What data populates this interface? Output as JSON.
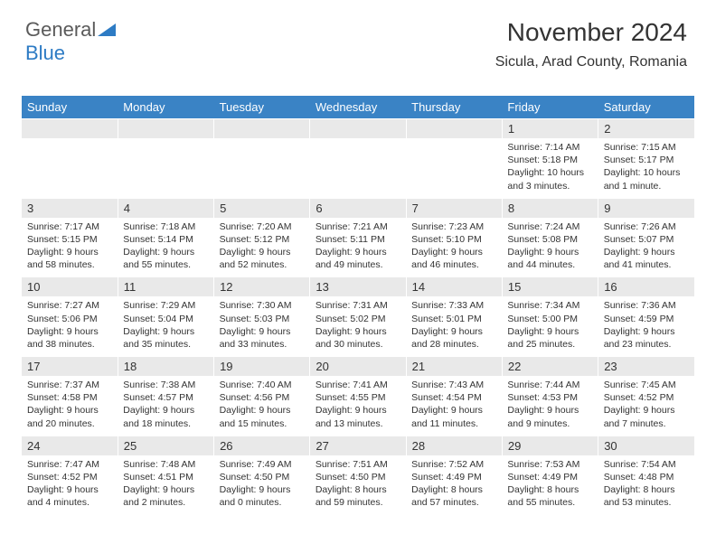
{
  "logo": {
    "text1": "General",
    "text2": "Blue"
  },
  "title": "November 2024",
  "location": "Sicula, Arad County, Romania",
  "colors": {
    "header_bg": "#3a83c5",
    "header_text": "#ffffff",
    "daynum_bg": "#e9e9e9",
    "text": "#333333",
    "logo_gray": "#5a5a5a",
    "logo_blue": "#2d7bc4",
    "page_bg": "#ffffff"
  },
  "weekdays": [
    "Sunday",
    "Monday",
    "Tuesday",
    "Wednesday",
    "Thursday",
    "Friday",
    "Saturday"
  ],
  "weeks": [
    [
      null,
      null,
      null,
      null,
      null,
      {
        "n": "1",
        "sr": "Sunrise: 7:14 AM",
        "ss": "Sunset: 5:18 PM",
        "dl": "Daylight: 10 hours and 3 minutes."
      },
      {
        "n": "2",
        "sr": "Sunrise: 7:15 AM",
        "ss": "Sunset: 5:17 PM",
        "dl": "Daylight: 10 hours and 1 minute."
      }
    ],
    [
      {
        "n": "3",
        "sr": "Sunrise: 7:17 AM",
        "ss": "Sunset: 5:15 PM",
        "dl": "Daylight: 9 hours and 58 minutes."
      },
      {
        "n": "4",
        "sr": "Sunrise: 7:18 AM",
        "ss": "Sunset: 5:14 PM",
        "dl": "Daylight: 9 hours and 55 minutes."
      },
      {
        "n": "5",
        "sr": "Sunrise: 7:20 AM",
        "ss": "Sunset: 5:12 PM",
        "dl": "Daylight: 9 hours and 52 minutes."
      },
      {
        "n": "6",
        "sr": "Sunrise: 7:21 AM",
        "ss": "Sunset: 5:11 PM",
        "dl": "Daylight: 9 hours and 49 minutes."
      },
      {
        "n": "7",
        "sr": "Sunrise: 7:23 AM",
        "ss": "Sunset: 5:10 PM",
        "dl": "Daylight: 9 hours and 46 minutes."
      },
      {
        "n": "8",
        "sr": "Sunrise: 7:24 AM",
        "ss": "Sunset: 5:08 PM",
        "dl": "Daylight: 9 hours and 44 minutes."
      },
      {
        "n": "9",
        "sr": "Sunrise: 7:26 AM",
        "ss": "Sunset: 5:07 PM",
        "dl": "Daylight: 9 hours and 41 minutes."
      }
    ],
    [
      {
        "n": "10",
        "sr": "Sunrise: 7:27 AM",
        "ss": "Sunset: 5:06 PM",
        "dl": "Daylight: 9 hours and 38 minutes."
      },
      {
        "n": "11",
        "sr": "Sunrise: 7:29 AM",
        "ss": "Sunset: 5:04 PM",
        "dl": "Daylight: 9 hours and 35 minutes."
      },
      {
        "n": "12",
        "sr": "Sunrise: 7:30 AM",
        "ss": "Sunset: 5:03 PM",
        "dl": "Daylight: 9 hours and 33 minutes."
      },
      {
        "n": "13",
        "sr": "Sunrise: 7:31 AM",
        "ss": "Sunset: 5:02 PM",
        "dl": "Daylight: 9 hours and 30 minutes."
      },
      {
        "n": "14",
        "sr": "Sunrise: 7:33 AM",
        "ss": "Sunset: 5:01 PM",
        "dl": "Daylight: 9 hours and 28 minutes."
      },
      {
        "n": "15",
        "sr": "Sunrise: 7:34 AM",
        "ss": "Sunset: 5:00 PM",
        "dl": "Daylight: 9 hours and 25 minutes."
      },
      {
        "n": "16",
        "sr": "Sunrise: 7:36 AM",
        "ss": "Sunset: 4:59 PM",
        "dl": "Daylight: 9 hours and 23 minutes."
      }
    ],
    [
      {
        "n": "17",
        "sr": "Sunrise: 7:37 AM",
        "ss": "Sunset: 4:58 PM",
        "dl": "Daylight: 9 hours and 20 minutes."
      },
      {
        "n": "18",
        "sr": "Sunrise: 7:38 AM",
        "ss": "Sunset: 4:57 PM",
        "dl": "Daylight: 9 hours and 18 minutes."
      },
      {
        "n": "19",
        "sr": "Sunrise: 7:40 AM",
        "ss": "Sunset: 4:56 PM",
        "dl": "Daylight: 9 hours and 15 minutes."
      },
      {
        "n": "20",
        "sr": "Sunrise: 7:41 AM",
        "ss": "Sunset: 4:55 PM",
        "dl": "Daylight: 9 hours and 13 minutes."
      },
      {
        "n": "21",
        "sr": "Sunrise: 7:43 AM",
        "ss": "Sunset: 4:54 PM",
        "dl": "Daylight: 9 hours and 11 minutes."
      },
      {
        "n": "22",
        "sr": "Sunrise: 7:44 AM",
        "ss": "Sunset: 4:53 PM",
        "dl": "Daylight: 9 hours and 9 minutes."
      },
      {
        "n": "23",
        "sr": "Sunrise: 7:45 AM",
        "ss": "Sunset: 4:52 PM",
        "dl": "Daylight: 9 hours and 7 minutes."
      }
    ],
    [
      {
        "n": "24",
        "sr": "Sunrise: 7:47 AM",
        "ss": "Sunset: 4:52 PM",
        "dl": "Daylight: 9 hours and 4 minutes."
      },
      {
        "n": "25",
        "sr": "Sunrise: 7:48 AM",
        "ss": "Sunset: 4:51 PM",
        "dl": "Daylight: 9 hours and 2 minutes."
      },
      {
        "n": "26",
        "sr": "Sunrise: 7:49 AM",
        "ss": "Sunset: 4:50 PM",
        "dl": "Daylight: 9 hours and 0 minutes."
      },
      {
        "n": "27",
        "sr": "Sunrise: 7:51 AM",
        "ss": "Sunset: 4:50 PM",
        "dl": "Daylight: 8 hours and 59 minutes."
      },
      {
        "n": "28",
        "sr": "Sunrise: 7:52 AM",
        "ss": "Sunset: 4:49 PM",
        "dl": "Daylight: 8 hours and 57 minutes."
      },
      {
        "n": "29",
        "sr": "Sunrise: 7:53 AM",
        "ss": "Sunset: 4:49 PM",
        "dl": "Daylight: 8 hours and 55 minutes."
      },
      {
        "n": "30",
        "sr": "Sunrise: 7:54 AM",
        "ss": "Sunset: 4:48 PM",
        "dl": "Daylight: 8 hours and 53 minutes."
      }
    ]
  ]
}
